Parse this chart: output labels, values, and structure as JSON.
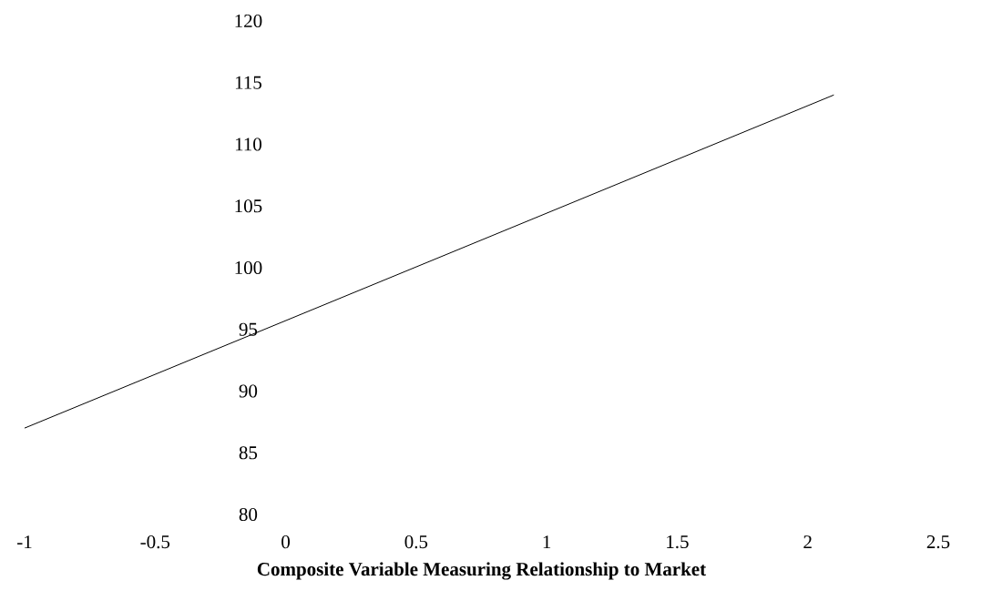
{
  "chart_data": {
    "type": "line",
    "xlabel": "Composite Variable Measuring Relationship to Market",
    "x": [
      -1,
      2.1
    ],
    "values": [
      87,
      114
    ],
    "color": "#000000",
    "xlim": [
      -1,
      2.5
    ],
    "ylim": [
      80,
      120
    ],
    "xticks": [
      -1,
      -0.5,
      0,
      0.5,
      1,
      1.5,
      2,
      2.5
    ],
    "yticks": [
      80,
      85,
      90,
      95,
      100,
      105,
      110,
      115,
      120
    ],
    "grid": false,
    "marker": "none",
    "line_style": "solid"
  }
}
